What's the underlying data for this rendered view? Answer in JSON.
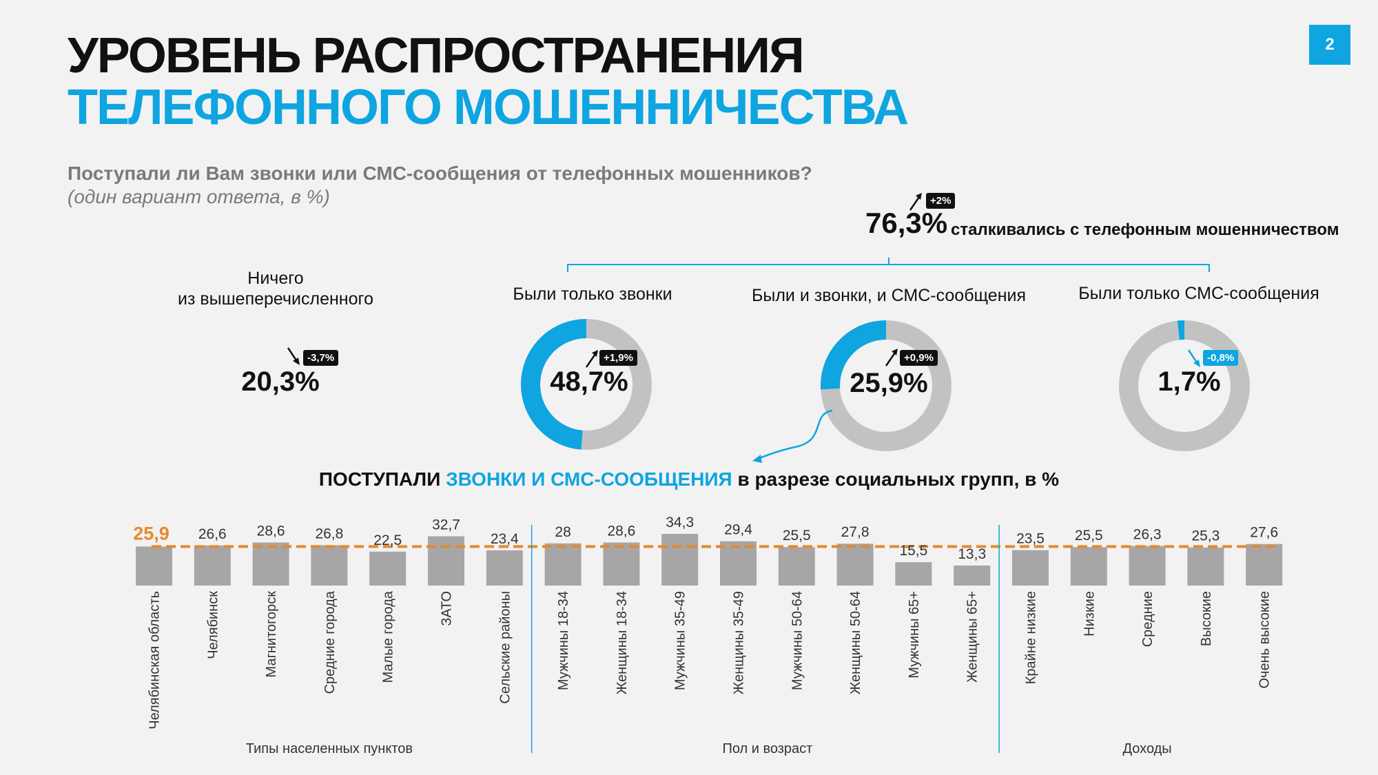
{
  "header": {
    "title_line1": "УРОВЕНЬ РАСПРОСТРАНЕНИЯ",
    "title_line2": "ТЕЛЕФОННОГО МОШЕННИЧЕСТВА",
    "page_number": "2"
  },
  "question": {
    "text": "Поступали ли Вам звонки или СМС-сообщения от телефонных мошенников?",
    "note": "(один вариант ответа, в %)"
  },
  "total": {
    "value": "76,3%",
    "label": "сталкивались с телефонным мошенничеством",
    "change": "+2%"
  },
  "nothing": {
    "label_line1": "Ничего",
    "label_line2": "из вышеперечисленного",
    "value": "20,3%",
    "change": "-3,7%"
  },
  "donuts": [
    {
      "label": "Были только звонки",
      "value_text": "48,7%",
      "value": 48.7,
      "change": "+1,9%",
      "change_dir": "up"
    },
    {
      "label": "Были и звонки, и СМС-сообщения",
      "value_text": "25,9%",
      "value": 25.9,
      "change": "+0,9%",
      "change_dir": "up"
    },
    {
      "label": "Были только СМС-сообщения",
      "value_text": "1,7%",
      "value": 1.7,
      "change": "-0,8%",
      "change_dir": "down"
    }
  ],
  "colors": {
    "accent": "#0ea5e0",
    "gray": "#a6a6a6",
    "ring_gray": "#c2c2c2",
    "orange": "#e8882a",
    "dark": "#111111"
  },
  "bar_title": {
    "part1": "ПОСТУПАЛИ ",
    "part2": "ЗВОНКИ И СМС-СООБЩЕНИЯ",
    "part3": " в разрезе социальных групп, в %"
  },
  "chart_data": {
    "type": "bar",
    "categories": [
      "Челябинская область",
      "Челябинск",
      "Магнитогорск",
      "Средние города",
      "Малые города",
      "ЗАТО",
      "Сельские районы",
      "Мужчины 18-34",
      "Женщины 18-34",
      "Мужчины 35-49",
      "Женщины 35-49",
      "Мужчины 50-64",
      "Женщины 50-64",
      "Мужчины 65+",
      "Женщины 65+",
      "Крайне низкие",
      "Низкие",
      "Средние",
      "Высокие",
      "Очень высокие"
    ],
    "values": [
      25.9,
      26.6,
      28.6,
      26.8,
      22.5,
      32.7,
      23.4,
      28,
      28.6,
      34.3,
      29.4,
      25.5,
      27.8,
      15.5,
      13.3,
      23.5,
      25.5,
      26.3,
      25.3,
      27.6
    ],
    "value_labels": [
      "25,9",
      "26,6",
      "28,6",
      "26,8",
      "22,5",
      "32,7",
      "23,4",
      "28",
      "28,6",
      "34,3",
      "29,4",
      "25,5",
      "27,8",
      "15,5",
      "13,3",
      "23,5",
      "25,5",
      "26,3",
      "25,3",
      "27,6"
    ],
    "reference_line": {
      "value": 25.9,
      "style": "dashed",
      "color": "#e8882a"
    },
    "groups": [
      {
        "label": "Типы населенных пунктов",
        "start": 0,
        "end": 6
      },
      {
        "label": "Пол и возраст",
        "start": 7,
        "end": 14
      },
      {
        "label": "Доходы",
        "start": 15,
        "end": 19
      }
    ],
    "title": "",
    "xlabel": "",
    "ylabel": "",
    "grid": false
  }
}
